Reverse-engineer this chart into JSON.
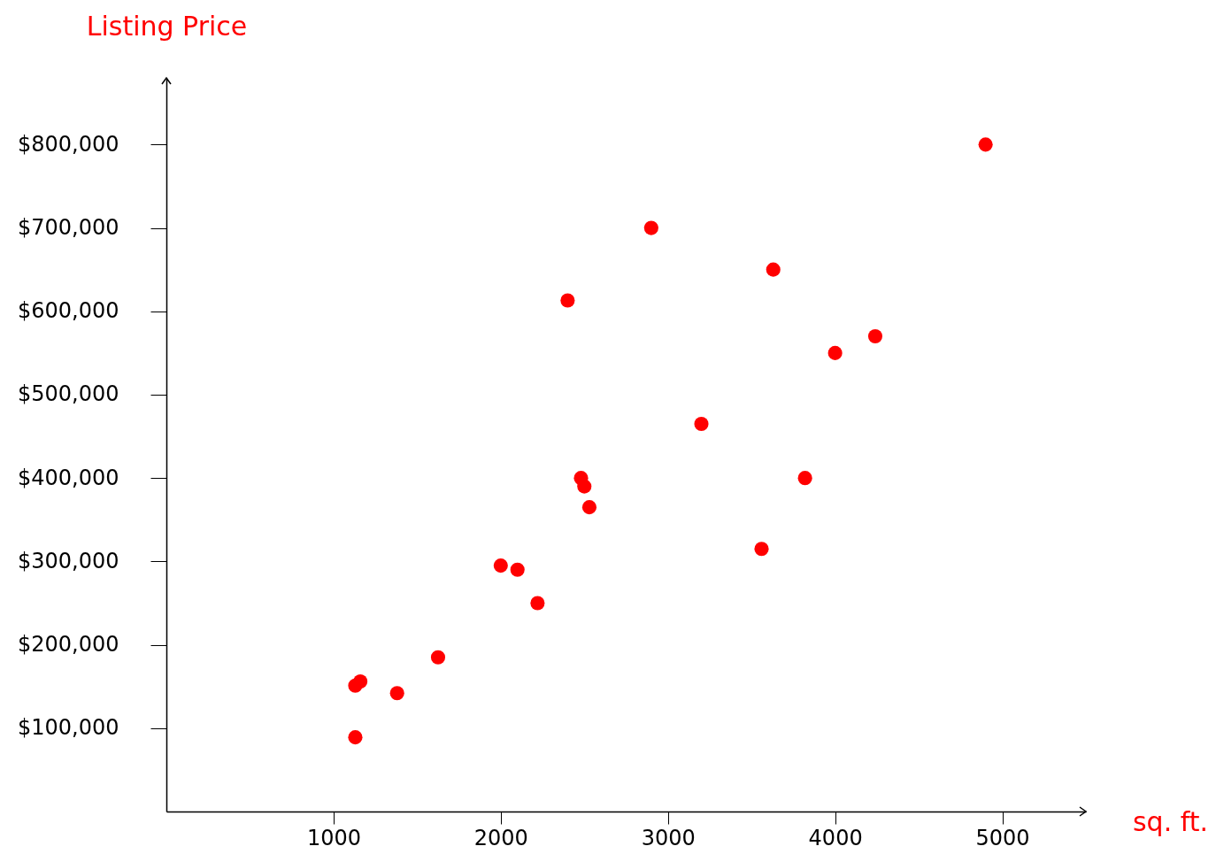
{
  "chart_data": {
    "type": "scatter",
    "xlabel": "sq. ft.",
    "ylabel": "Listing Price",
    "marker": "circle",
    "grid": false,
    "xlim": [
      0,
      5500
    ],
    "ylim": [
      0,
      880000
    ],
    "xticks": [
      1000,
      2000,
      3000,
      4000,
      5000
    ],
    "yticks": [
      {
        "value": 100000,
        "label": "$100,000"
      },
      {
        "value": 200000,
        "label": "$200,000"
      },
      {
        "value": 300000,
        "label": "$300,000"
      },
      {
        "value": 400000,
        "label": "$400,000"
      },
      {
        "value": 500000,
        "label": "$500,000"
      },
      {
        "value": 600000,
        "label": "$600,000"
      },
      {
        "value": 700000,
        "label": "$700,000"
      },
      {
        "value": 800000,
        "label": "$800,000"
      }
    ],
    "series": [
      {
        "color": "#ff0000",
        "x": [
          4900,
          2900,
          3630,
          2400,
          4240,
          4000,
          3200,
          3820,
          2480,
          2500,
          2530,
          3560,
          2000,
          2100,
          2220,
          1625,
          1380,
          1160,
          1130,
          1130
        ],
        "values": [
          800000,
          700000,
          650000,
          613000,
          570000,
          550000,
          465000,
          400000,
          400000,
          390000,
          365000,
          315000,
          295000,
          290000,
          250000,
          185000,
          142000,
          156000,
          151000,
          89000
        ]
      }
    ]
  }
}
